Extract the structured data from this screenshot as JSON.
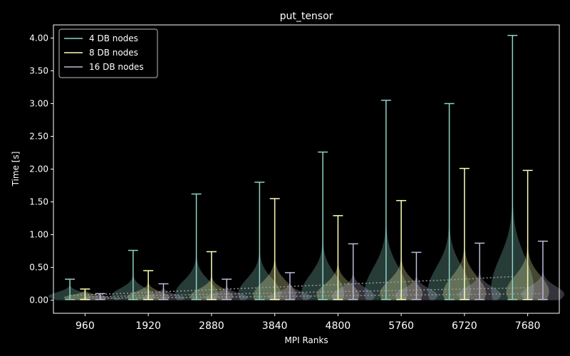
{
  "chart_data": {
    "type": "violin",
    "title": "put_tensor",
    "xlabel": "MPI Ranks",
    "ylabel": "Time [s]",
    "categories": [
      "960",
      "1920",
      "2880",
      "3840",
      "4800",
      "5760",
      "6720",
      "7680"
    ],
    "ylim": [
      -0.2,
      4.2
    ],
    "yticks": [
      "0.00",
      "0.50",
      "1.00",
      "1.50",
      "2.00",
      "2.50",
      "3.00",
      "3.50",
      "4.00"
    ],
    "legend_position": "top-left",
    "grid": false,
    "series": [
      {
        "name": "4 DB nodes",
        "color": "#8dd3c7",
        "min": [
          0.01,
          0.01,
          0.01,
          0.01,
          0.01,
          0.01,
          0.01,
          0.01
        ],
        "max": [
          0.32,
          0.76,
          1.62,
          1.8,
          2.26,
          3.05,
          3.0,
          4.04
        ],
        "mean": [
          0.07,
          0.11,
          0.15,
          0.19,
          0.23,
          0.27,
          0.31,
          0.36
        ],
        "peak": [
          0.06,
          0.07,
          0.09,
          0.1,
          0.11,
          0.13,
          0.15,
          0.18
        ]
      },
      {
        "name": "8 DB nodes",
        "color": "#ffffb3",
        "min": [
          0.01,
          0.01,
          0.01,
          0.01,
          0.01,
          0.01,
          0.01,
          0.01
        ],
        "max": [
          0.17,
          0.45,
          0.74,
          1.55,
          1.29,
          1.52,
          2.01,
          1.98
        ],
        "mean": [
          0.05,
          0.07,
          0.09,
          0.11,
          0.13,
          0.15,
          0.17,
          0.19
        ],
        "peak": [
          0.04,
          0.05,
          0.06,
          0.07,
          0.08,
          0.1,
          0.11,
          0.13
        ]
      },
      {
        "name": "16 DB nodes",
        "color": "#bebada",
        "min": [
          0.01,
          0.01,
          0.01,
          0.01,
          0.01,
          0.01,
          0.01,
          0.01
        ],
        "max": [
          0.1,
          0.25,
          0.32,
          0.42,
          0.86,
          0.73,
          0.87,
          0.9
        ],
        "mean": [
          0.03,
          0.04,
          0.05,
          0.06,
          0.07,
          0.08,
          0.09,
          0.1
        ],
        "peak": [
          0.02,
          0.03,
          0.04,
          0.05,
          0.06,
          0.07,
          0.08,
          0.09
        ]
      }
    ]
  }
}
